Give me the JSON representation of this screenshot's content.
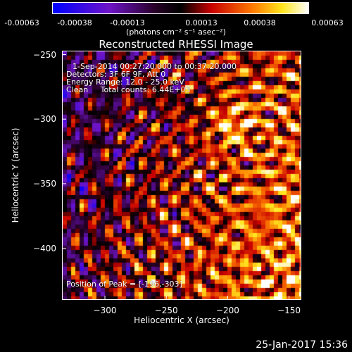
{
  "chart_data": {
    "type": "heatmap",
    "title": "Reconstructed RHESSI Image",
    "xlabel": "Heliocentric X (arcsec)",
    "ylabel": "Heliocentric Y (arcsec)",
    "xlim": [
      -335,
      -140
    ],
    "ylim": [
      -440,
      -247
    ],
    "x_ticks": [
      -300,
      -250,
      -200,
      -150
    ],
    "y_ticks": [
      -250,
      -300,
      -350,
      -400
    ],
    "colorbar": {
      "ticks": [
        "-0.00063",
        "-0.00038",
        "-0.00013",
        "0.00013",
        "0.00038",
        "0.00063"
      ],
      "units": "(photons cm⁻² s⁻¹ asec⁻²)",
      "range": [
        -0.00063,
        0.00063
      ],
      "colormap": "blue-purple-red-yellow-white"
    },
    "annotations": {
      "time": "1-Sep-2014 00:27:20.000 to 00:37:20.000",
      "detectors": "Detectors: 3F 6F 9F, Att 0",
      "energy": "Energy Range: 12.0 - 25.0 keV",
      "clean": "Clean     Total counts: 6.44E+03",
      "peak": "Position of Peak = [-196,-303]"
    },
    "peak_position": [
      -196,
      -303
    ],
    "grid": false
  },
  "footer": {
    "timestamp": "25-Jan-2017 15:36"
  }
}
